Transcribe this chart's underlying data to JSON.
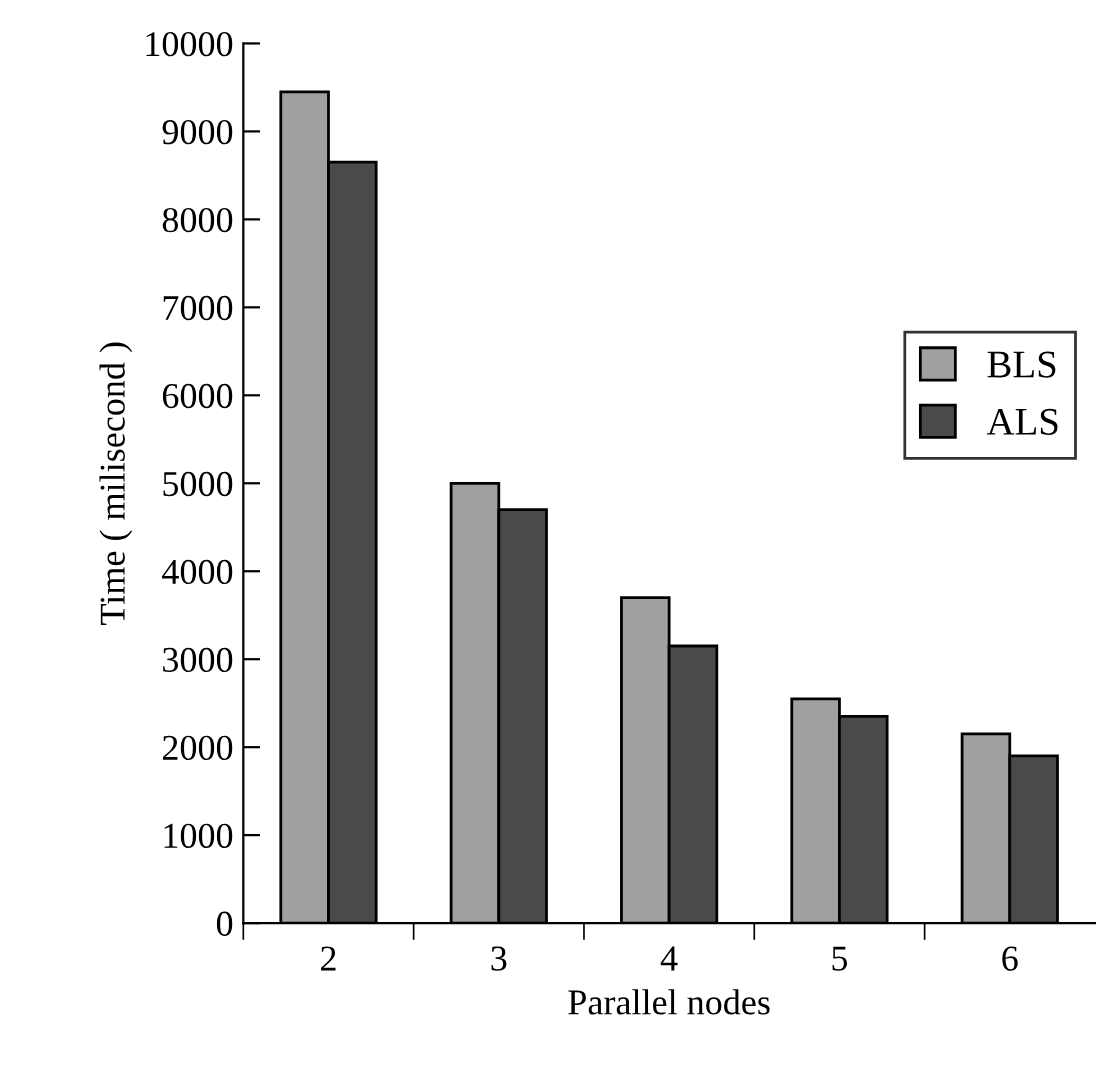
{
  "chart_data": {
    "type": "bar",
    "xlabel": "Parallel nodes",
    "ylabel": "Time ( milisecond )",
    "categories": [
      "2",
      "3",
      "4",
      "5",
      "6"
    ],
    "series": [
      {
        "name": "BLS",
        "color": "#a0a0a0",
        "values": [
          9450,
          5000,
          3700,
          2550,
          2150
        ]
      },
      {
        "name": "ALS",
        "color": "#4a4a4a",
        "values": [
          8650,
          4700,
          3150,
          2350,
          1900
        ]
      }
    ],
    "ylim": [
      0,
      10000
    ],
    "yticks": [
      0,
      1000,
      2000,
      3000,
      4000,
      5000,
      6000,
      7000,
      8000,
      9000,
      10000
    ],
    "grid": false,
    "legend": "right"
  }
}
